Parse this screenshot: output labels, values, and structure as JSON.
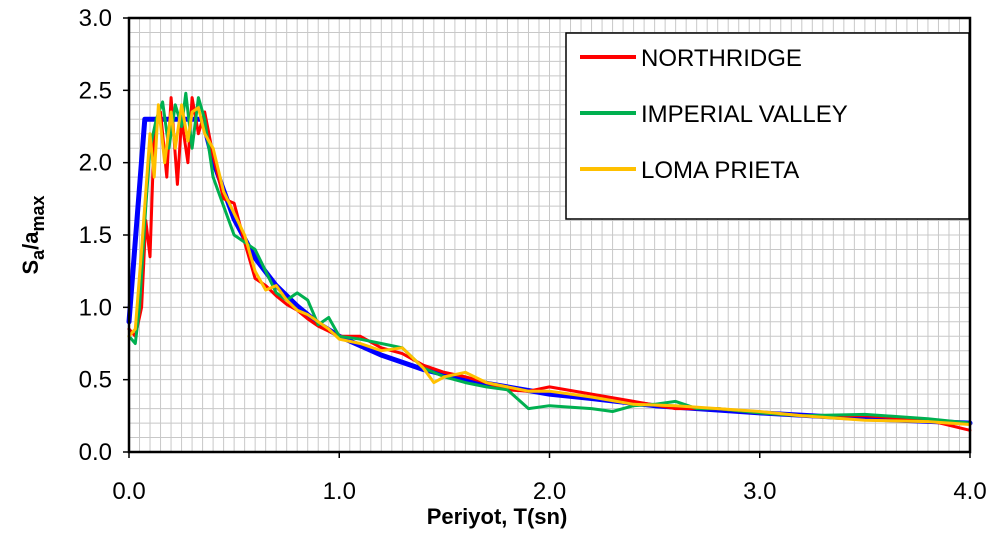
{
  "chart_data": {
    "type": "line",
    "title": "",
    "xlabel": "Periyot, T(sn)",
    "ylabel": {
      "main": "S",
      "sub1": "a",
      "mid": "/a",
      "sub2": "max"
    },
    "xlim": [
      0,
      4
    ],
    "ylim": [
      0,
      3
    ],
    "xticks": [
      "0.0",
      "1.0",
      "2.0",
      "3.0",
      "4.0"
    ],
    "yticks": [
      "0.0",
      "0.5",
      "1.0",
      "1.5",
      "2.0",
      "2.5",
      "3.0"
    ],
    "x_minor_step": 0.05,
    "y_minor_step": 0.1,
    "grid": true,
    "legend_position": "top-right",
    "series": [
      {
        "color": "#0000ff",
        "width": 5,
        "x": [
          0,
          0.075,
          0.35,
          0.4,
          0.5,
          0.6,
          0.7,
          0.8,
          0.9,
          1.0,
          1.2,
          1.4,
          1.6,
          1.8,
          2.0,
          2.2,
          2.5,
          2.8,
          3.0,
          3.5,
          4.0
        ],
        "values": [
          0.9,
          2.3,
          2.3,
          2.01,
          1.61,
          1.34,
          1.15,
          1.01,
          0.89,
          0.8,
          0.67,
          0.57,
          0.5,
          0.45,
          0.4,
          0.37,
          0.32,
          0.29,
          0.27,
          0.23,
          0.2
        ]
      },
      {
        "name": "NORTHRIDGE",
        "color": "#ff0000",
        "width": 3,
        "x": [
          0,
          0.03,
          0.06,
          0.08,
          0.1,
          0.12,
          0.15,
          0.18,
          0.2,
          0.23,
          0.25,
          0.28,
          0.3,
          0.33,
          0.36,
          0.4,
          0.45,
          0.5,
          0.55,
          0.6,
          0.65,
          0.7,
          0.75,
          0.8,
          0.85,
          0.9,
          1.0,
          1.1,
          1.2,
          1.3,
          1.4,
          1.5,
          1.6,
          1.7,
          1.8,
          1.9,
          2.0,
          2.2,
          2.4,
          2.6,
          2.8,
          3.0,
          3.2,
          3.5,
          3.8,
          4.0
        ],
        "values": [
          0.85,
          0.8,
          1.0,
          1.6,
          1.35,
          2.2,
          2.35,
          1.9,
          2.45,
          1.85,
          2.3,
          2.0,
          2.45,
          2.2,
          2.35,
          2.05,
          1.75,
          1.72,
          1.45,
          1.2,
          1.15,
          1.08,
          1.02,
          0.98,
          0.92,
          0.87,
          0.8,
          0.8,
          0.72,
          0.68,
          0.6,
          0.55,
          0.52,
          0.48,
          0.43,
          0.42,
          0.45,
          0.4,
          0.35,
          0.3,
          0.3,
          0.27,
          0.25,
          0.25,
          0.22,
          0.15
        ]
      },
      {
        "name": "IMPERIAL VALLEY",
        "color": "#00b050",
        "width": 3,
        "x": [
          0,
          0.03,
          0.05,
          0.08,
          0.1,
          0.13,
          0.16,
          0.19,
          0.22,
          0.25,
          0.27,
          0.3,
          0.33,
          0.36,
          0.4,
          0.45,
          0.5,
          0.55,
          0.6,
          0.65,
          0.7,
          0.75,
          0.8,
          0.85,
          0.9,
          0.95,
          1.0,
          1.1,
          1.2,
          1.3,
          1.4,
          1.5,
          1.6,
          1.7,
          1.8,
          1.9,
          2.0,
          2.2,
          2.3,
          2.4,
          2.5,
          2.6,
          2.7,
          2.8,
          3.0,
          3.2,
          3.5,
          3.8,
          4.0
        ],
        "values": [
          0.8,
          0.75,
          1.0,
          1.7,
          2.1,
          2.3,
          2.42,
          2.1,
          2.4,
          2.25,
          2.48,
          2.1,
          2.45,
          2.3,
          1.9,
          1.7,
          1.5,
          1.45,
          1.4,
          1.25,
          1.1,
          1.05,
          1.1,
          1.05,
          0.88,
          0.93,
          0.8,
          0.78,
          0.75,
          0.72,
          0.58,
          0.52,
          0.48,
          0.45,
          0.43,
          0.3,
          0.32,
          0.3,
          0.28,
          0.32,
          0.33,
          0.35,
          0.3,
          0.3,
          0.27,
          0.25,
          0.26,
          0.23,
          0.2
        ]
      },
      {
        "name": "LOMA PRIETA",
        "color": "#ffc000",
        "width": 3,
        "x": [
          0,
          0.03,
          0.06,
          0.08,
          0.1,
          0.12,
          0.14,
          0.17,
          0.2,
          0.22,
          0.25,
          0.28,
          0.3,
          0.33,
          0.36,
          0.4,
          0.45,
          0.5,
          0.55,
          0.6,
          0.65,
          0.7,
          0.75,
          0.8,
          0.85,
          0.9,
          0.95,
          1.0,
          1.1,
          1.2,
          1.3,
          1.4,
          1.45,
          1.5,
          1.6,
          1.7,
          1.8,
          1.9,
          2.0,
          2.2,
          2.4,
          2.6,
          2.8,
          3.0,
          3.2,
          3.5,
          3.8,
          4.0
        ],
        "values": [
          0.8,
          0.85,
          1.4,
          1.8,
          2.2,
          1.9,
          2.4,
          2.0,
          2.35,
          2.1,
          2.4,
          2.15,
          2.35,
          2.38,
          2.2,
          2.1,
          1.8,
          1.65,
          1.5,
          1.25,
          1.12,
          1.15,
          1.05,
          0.98,
          0.95,
          0.9,
          0.85,
          0.78,
          0.75,
          0.7,
          0.72,
          0.58,
          0.48,
          0.52,
          0.55,
          0.48,
          0.45,
          0.42,
          0.42,
          0.38,
          0.33,
          0.32,
          0.3,
          0.28,
          0.25,
          0.22,
          0.21,
          0.19
        ]
      }
    ]
  }
}
